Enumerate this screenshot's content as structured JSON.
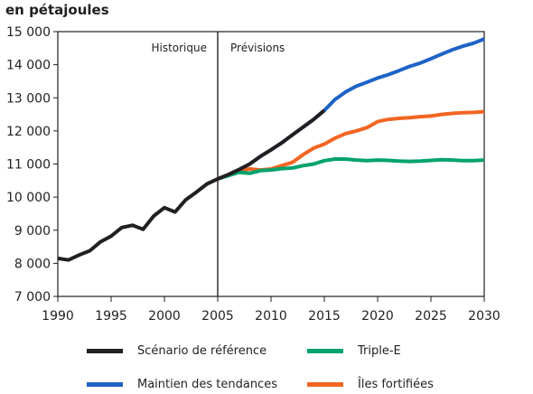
{
  "unit_label": "en pétajoules",
  "chart_data": {
    "type": "line",
    "ylabel": "en pétajoules",
    "xlim": [
      1990,
      2030
    ],
    "ylim": [
      7000,
      15000
    ],
    "x_ticks": [
      1990,
      1995,
      2000,
      2005,
      2010,
      2015,
      2020,
      2025,
      2030
    ],
    "x_tick_labels": [
      "1990",
      "1995",
      "2000",
      "2005",
      "2010",
      "2015",
      "2020",
      "2025",
      "2030"
    ],
    "y_ticks": [
      7000,
      8000,
      9000,
      10000,
      11000,
      12000,
      13000,
      14000,
      15000
    ],
    "y_tick_labels": [
      "7 000",
      "8 000",
      "9 000",
      "10 000",
      "11 000",
      "12 000",
      "13 000",
      "14 000",
      "15 000"
    ],
    "annotations": {
      "divider_x": 2005,
      "left": "Historique",
      "right": "Prévisions"
    },
    "legend_placement": "bottom",
    "series": [
      {
        "name": "Maintien des tendances",
        "color": "#1f63c6",
        "x": [
          2005,
          2006,
          2007,
          2008,
          2009,
          2010,
          2011,
          2012,
          2013,
          2014,
          2015,
          2016,
          2017,
          2018,
          2019,
          2020,
          2021,
          2022,
          2023,
          2024,
          2025,
          2026,
          2027,
          2028,
          2029,
          2030
        ],
        "values": [
          10550,
          10680,
          10830,
          11000,
          11230,
          11430,
          11640,
          11880,
          12110,
          12350,
          12620,
          12950,
          13180,
          13350,
          13470,
          13600,
          13700,
          13820,
          13950,
          14050,
          14180,
          14320,
          14450,
          14560,
          14650,
          14780
        ]
      },
      {
        "name": "Îles fortifiées",
        "color": "#f26522",
        "x": [
          2005,
          2006,
          2007,
          2008,
          2009,
          2010,
          2011,
          2012,
          2013,
          2014,
          2015,
          2016,
          2017,
          2018,
          2019,
          2020,
          2021,
          2022,
          2023,
          2024,
          2025,
          2026,
          2027,
          2028,
          2029,
          2030
        ],
        "values": [
          10550,
          10680,
          10800,
          10850,
          10820,
          10850,
          10950,
          11050,
          11280,
          11480,
          11600,
          11780,
          11920,
          12000,
          12100,
          12280,
          12350,
          12380,
          12400,
          12430,
          12450,
          12500,
          12530,
          12550,
          12560,
          12580
        ]
      },
      {
        "name": "Triple-E",
        "color": "#00a36c",
        "x": [
          2005,
          2006,
          2007,
          2008,
          2009,
          2010,
          2011,
          2012,
          2013,
          2014,
          2015,
          2016,
          2017,
          2018,
          2019,
          2020,
          2021,
          2022,
          2023,
          2024,
          2025,
          2026,
          2027,
          2028,
          2029,
          2030
        ],
        "values": [
          10550,
          10650,
          10750,
          10720,
          10800,
          10820,
          10860,
          10880,
          10950,
          11000,
          11100,
          11150,
          11150,
          11120,
          11100,
          11120,
          11110,
          11090,
          11080,
          11090,
          11110,
          11130,
          11120,
          11100,
          11100,
          11120
        ]
      },
      {
        "name": "Scénario de référence",
        "color": "#231f20",
        "x": [
          1990,
          1991,
          1992,
          1993,
          1994,
          1995,
          1996,
          1997,
          1998,
          1999,
          2000,
          2001,
          2002,
          2003,
          2004,
          2005,
          2006,
          2007,
          2008,
          2009,
          2010,
          2011,
          2012,
          2013,
          2014,
          2015
        ],
        "values": [
          8150,
          8100,
          8250,
          8380,
          8650,
          8820,
          9080,
          9150,
          9030,
          9430,
          9680,
          9550,
          9920,
          10150,
          10400,
          10550,
          10680,
          10830,
          11000,
          11230,
          11430,
          11640,
          11880,
          12110,
          12350,
          12620
        ]
      }
    ]
  },
  "legend": [
    {
      "label": "Scénario de référence",
      "color": "#231f20"
    },
    {
      "label": "Triple-E",
      "color": "#00a36c"
    },
    {
      "label": "Maintien des tendances",
      "color": "#1f63c6"
    },
    {
      "label": "Îles fortifiées",
      "color": "#f26522"
    }
  ]
}
